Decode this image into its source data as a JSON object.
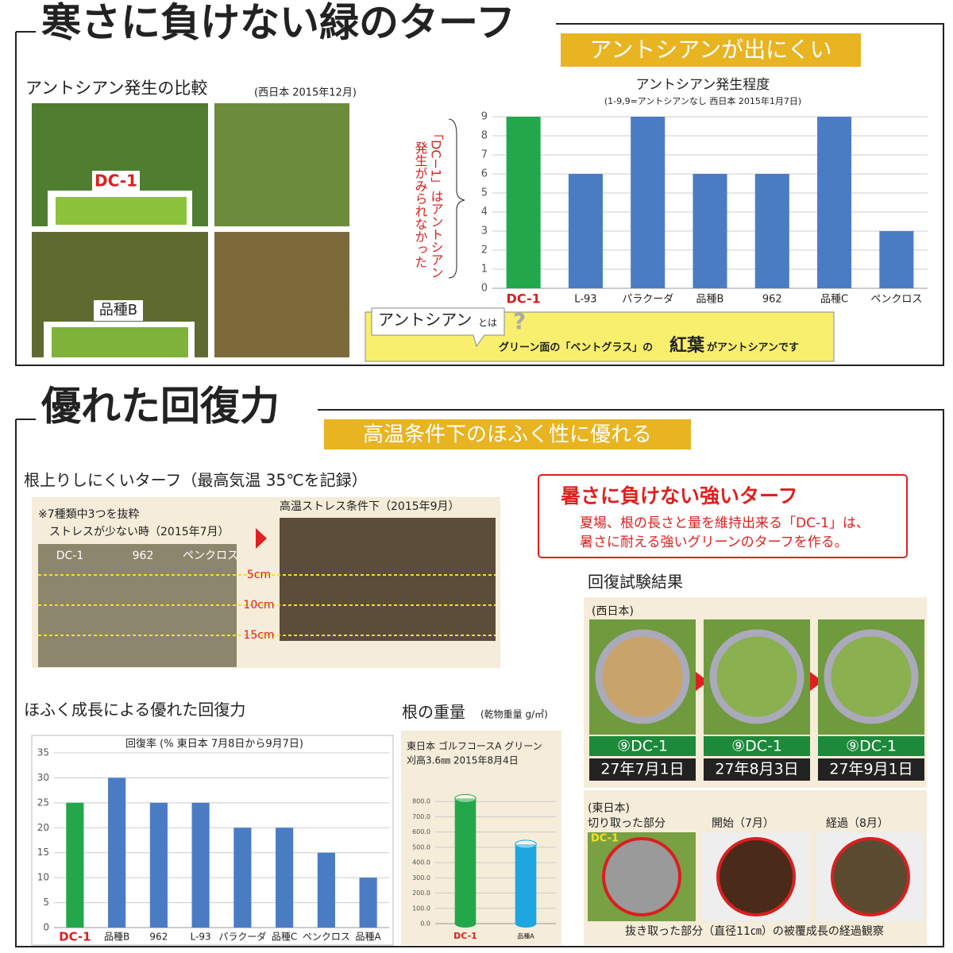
{
  "section1": {
    "title": "寒さに負けない緑のターフ",
    "banner": "アントシアンが出にくい",
    "photo_caption": "アントシアン発生の比較",
    "photo_note": "(西日本 2015年12月)",
    "photo_labels": [
      "DC-1",
      "品種B"
    ],
    "chart": {
      "type": "bar",
      "title": "アントシアン発生程度",
      "subtitle": "(1-9,9=アントシアンなし 西日本 2015年1月7日)",
      "categories": [
        "DC-1",
        "L-93",
        "パラクーダ",
        "品種B",
        "962",
        "品種C",
        "ペンクロス"
      ],
      "values": [
        9,
        6,
        9,
        6,
        6,
        9,
        3
      ],
      "colors": [
        "#22a84a",
        "#4a7cc4",
        "#4a7cc4",
        "#4a7cc4",
        "#4a7cc4",
        "#4a7cc4",
        "#4a7cc4"
      ],
      "ylim": [
        0,
        9
      ],
      "yticks": [
        0,
        1,
        2,
        3,
        4,
        5,
        6,
        7,
        8,
        9
      ],
      "grid": true,
      "annotation_lines": [
        "「DC−1」はアントシアン",
        "発生がみられなかった"
      ]
    },
    "callout": {
      "term": "アントシアン",
      "suffix": "とは",
      "text_parts": [
        "グリーン面の「ベントグラス」の",
        "紅葉",
        "がアントシアンです"
      ]
    }
  },
  "section2": {
    "title": "優れた回復力",
    "banner": "高温条件下のほふく性に優れる",
    "root_heading": "根上りしにくいターフ（最高気温 35℃を記録）",
    "root_notes": [
      "※7種類中3つを抜粋",
      "ストレスが少ない時（2015年7月）"
    ],
    "root_labels": [
      "DC-1",
      "962",
      "ペンクロス"
    ],
    "stress_label": "高温ストレス条件下（2015年9月）",
    "depth_labels": [
      "5cm",
      "10cm",
      "15cm"
    ],
    "highlight": {
      "title": "暑さに負けない強いターフ",
      "lines": [
        "夏場、根の長さと量を維持出来る「DC-1」は、",
        "暑さに耐える強いグリーンのターフを作る。"
      ]
    },
    "recovery": {
      "heading": "回復試験結果",
      "west": "(西日本)",
      "variety_labels": [
        "⑨DC-1",
        "⑨DC-1",
        "⑨DC-1"
      ],
      "dates": [
        "27年7月1日",
        "27年8月3日",
        "27年9月1日"
      ],
      "east": "(東日本)",
      "east_captions": [
        "切り取った部分",
        "開始（7月）",
        "経過（8月）"
      ],
      "east_tag": "DC-1",
      "bottom_caption": "抜き取った部分（直径11㎝）の被覆成長の経過観察"
    },
    "recovery_chart": {
      "type": "bar",
      "heading": "ほふく成長による優れた回復力",
      "title": "回復率 (% 東日本 7月8日から9月7日)",
      "categories": [
        "DC-1",
        "品種B",
        "962",
        "L-93",
        "パラクーダ",
        "品種C",
        "ペンクロス",
        "品種A"
      ],
      "values": [
        25,
        30,
        25,
        25,
        20,
        20,
        15,
        10
      ],
      "colors": [
        "#22a84a",
        "#4a7cc4",
        "#4a7cc4",
        "#4a7cc4",
        "#4a7cc4",
        "#4a7cc4",
        "#4a7cc4",
        "#4a7cc4"
      ],
      "ylim": [
        0,
        35
      ],
      "yticks": [
        0,
        5,
        10,
        15,
        20,
        25,
        30,
        35
      ],
      "grid": true
    },
    "root_chart": {
      "type": "bar3d",
      "heading": "根の重量",
      "unit": "(乾物重量 g/㎡)",
      "notes": [
        "東日本 ゴルフコースA グリーン",
        "刈高3.6㎜ 2015年8月4日"
      ],
      "categories": [
        "DC-1",
        "品種A"
      ],
      "values": [
        820,
        520
      ],
      "colors": [
        "#22a84a",
        "#1ea6e0"
      ],
      "ylim": [
        0,
        900
      ],
      "yticks": [
        {
          "value": 0,
          "label": "0.0"
        },
        {
          "value": 100,
          "label": "100.0"
        },
        {
          "value": 200,
          "label": "200.0"
        },
        {
          "value": 300,
          "label": "300.0"
        },
        {
          "value": 400,
          "label": "400.0"
        },
        {
          "value": 500,
          "label": "500.0"
        },
        {
          "value": 600,
          "label": "600.0"
        },
        {
          "value": 700,
          "label": "700.0"
        },
        {
          "value": 800,
          "label": "800.0"
        }
      ],
      "grid": true
    }
  }
}
